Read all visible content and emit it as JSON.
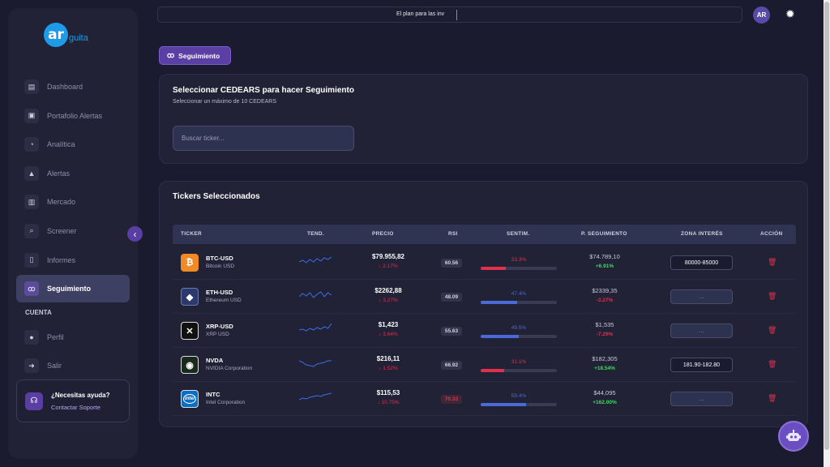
{
  "brand": {
    "logo_letters": "ar",
    "logo_word": "guita"
  },
  "sidebar": {
    "items": [
      {
        "label": "Dashboard",
        "icon": "chart-icon",
        "glyph": "▤"
      },
      {
        "label": "Portafolio Alertas",
        "icon": "briefcase-icon",
        "glyph": "▣"
      },
      {
        "label": "Analítica",
        "icon": "pie-icon",
        "glyph": "◔"
      },
      {
        "label": "Alertas",
        "icon": "bell-icon",
        "glyph": "▲"
      },
      {
        "label": "Mercado",
        "icon": "bar-chart-icon",
        "glyph": "▥"
      },
      {
        "label": "Screener",
        "icon": "search-icon",
        "glyph": "⌕"
      },
      {
        "label": "Informes",
        "icon": "file-icon",
        "glyph": "▯"
      },
      {
        "label": "Seguimiento",
        "icon": "binoculars-icon",
        "glyph": "ꝏ",
        "active": true
      }
    ],
    "section_label": "CUENTA",
    "account_items": [
      {
        "label": "Perfil",
        "icon": "user-icon",
        "glyph": "●"
      },
      {
        "label": "Salir",
        "icon": "logout-icon",
        "glyph": "➜"
      }
    ],
    "help": {
      "title": "¿Necesitas ayuda?",
      "link": "Contactar Soporte"
    }
  },
  "topbar": {
    "ticker_text": "El plan para las inv",
    "avatar": "AR"
  },
  "tab": {
    "label": "Seguimiento"
  },
  "selector": {
    "title": "Seleccionar CEDEARS para hacer Seguimiento",
    "subtitle": "Seleccionar un máximo de 10 CEDEARS",
    "search_placeholder": "Buscar ticker..."
  },
  "table": {
    "title": "Tickers Seleccionados",
    "headers": {
      "ticker": "TICKER",
      "trend": "TEND.",
      "price": "PRECIO",
      "rsi": "RSI",
      "sentiment": "SENTIM.",
      "follow": "P. SEGUIMIENTO",
      "zone": "ZONA INTERÉS",
      "action": "ACCIÓN"
    },
    "zone_placeholder": "...",
    "rows": [
      {
        "symbol": "BTC-USD",
        "name": "Bitcoin USD",
        "icon_glyph": "₿",
        "icon_color": "#f08a24",
        "icon_border": "#f08a24",
        "price": "$79.955,82",
        "price_change": "↓ 2.17%",
        "rsi": "60.56",
        "rsi_hot": false,
        "sentiment": "33.3%",
        "sentiment_level": 0.333,
        "sentiment_color": "#e0304e",
        "follow_price": "$74.789,10",
        "follow_change": "+6.91%",
        "follow_color": "#3ddc5f",
        "zone": "80000-85000",
        "spark": [
          0.5,
          0.4,
          0.55,
          0.35,
          0.5,
          0.3,
          0.45,
          0.25,
          0.35,
          0.2
        ]
      },
      {
        "symbol": "ETH-USD",
        "name": "Ethereum USD",
        "icon_glyph": "◆",
        "icon_color": "#2b3a6b",
        "icon_border": "#6a7ab8",
        "price": "$2262,88",
        "price_change": "↓ 3.27%",
        "rsi": "48.09",
        "rsi_hot": false,
        "sentiment": "47.4%",
        "sentiment_level": 0.474,
        "sentiment_color": "#4a6ad8",
        "follow_price": "$2339,35",
        "follow_change": "-3.27%",
        "follow_color": "#e0304e",
        "zone": "",
        "spark": [
          0.55,
          0.35,
          0.5,
          0.3,
          0.6,
          0.4,
          0.25,
          0.55,
          0.3,
          0.45
        ]
      },
      {
        "symbol": "XRP-USD",
        "name": "XRP USD",
        "icon_glyph": "✕",
        "icon_color": "#111111",
        "icon_border": "#dddddd",
        "price": "$1,423",
        "price_change": "↓ 3.64%",
        "rsi": "55.63",
        "rsi_hot": false,
        "sentiment": "49.5%",
        "sentiment_level": 0.495,
        "sentiment_color": "#4a6ad8",
        "follow_price": "$1,535",
        "follow_change": "-7.29%",
        "follow_color": "#e0304e",
        "zone": "",
        "spark": [
          0.5,
          0.45,
          0.55,
          0.4,
          0.5,
          0.35,
          0.45,
          0.3,
          0.4,
          0.1
        ]
      },
      {
        "symbol": "NVDA",
        "name": "NVIDIA Corporation",
        "icon_glyph": "◉",
        "icon_color": "#1a2a1a",
        "icon_border": "#dddddd",
        "price": "$216,11",
        "price_change": "↓ 1.52%",
        "rsi": "66.92",
        "rsi_hot": false,
        "sentiment": "31.1%",
        "sentiment_level": 0.311,
        "sentiment_color": "#e0304e",
        "follow_price": "$182,305",
        "follow_change": "+18.54%",
        "follow_color": "#3ddc5f",
        "zone": "181.90-182.80",
        "spark": [
          0.3,
          0.4,
          0.55,
          0.6,
          0.65,
          0.5,
          0.45,
          0.4,
          0.3,
          0.3
        ]
      },
      {
        "symbol": "INTC",
        "name": "Intel Corporation",
        "icon_glyph": "intel",
        "icon_color": "#0a6fc4",
        "icon_border": "#dddddd",
        "price": "$115,53",
        "price_change": "↓ 10.75%",
        "rsi": "70.33",
        "rsi_hot": true,
        "sentiment": "59.4%",
        "sentiment_level": 0.594,
        "sentiment_color": "#4a6ad8",
        "follow_price": "$44,095",
        "follow_change": "+162.00%",
        "follow_color": "#3ddc5f",
        "zone": "",
        "spark": [
          0.6,
          0.5,
          0.55,
          0.45,
          0.4,
          0.35,
          0.4,
          0.3,
          0.25,
          0.2
        ]
      }
    ]
  }
}
